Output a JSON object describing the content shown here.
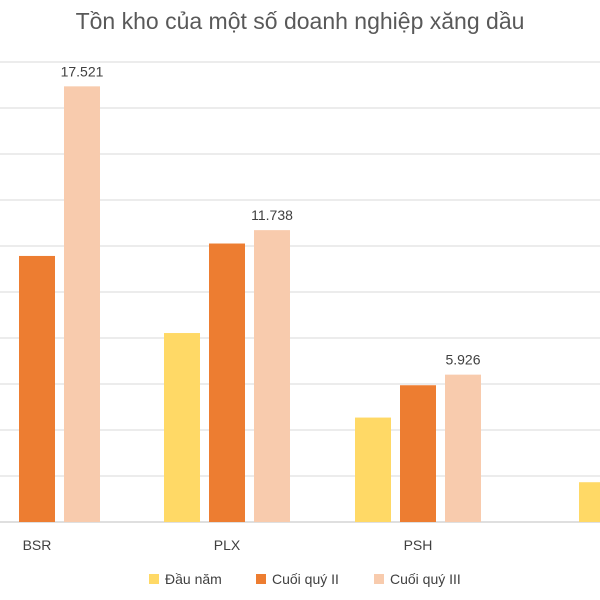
{
  "chart_data": {
    "type": "bar",
    "title": "Tồn kho của một số doanh nghiệp xăng dầu",
    "categories": [
      "BSR",
      "PLX",
      "PSH"
    ],
    "series": [
      {
        "name": "Đầu năm",
        "color": "#FFD966",
        "values": [
          null,
          7600,
          4200
        ]
      },
      {
        "name": "Cuối quý II",
        "color": "#ED7D31",
        "values": [
          10700,
          11200,
          5500
        ]
      },
      {
        "name": "Cuối quý III",
        "color": "#F8CBAD",
        "values": [
          17521,
          11738,
          5926
        ]
      }
    ],
    "data_labels": [
      {
        "category": "BSR",
        "series": "Cuối quý III",
        "text": "17.521"
      },
      {
        "category": "PLX",
        "series": "Cuối quý III",
        "text": "11.738"
      },
      {
        "category": "PSH",
        "series": "Cuối quý III",
        "text": "5.926"
      }
    ],
    "partial_bar": {
      "series": "Đầu năm",
      "value": 1600
    },
    "ylim": [
      0,
      18500
    ],
    "grid": true,
    "legend_position": "bottom"
  }
}
